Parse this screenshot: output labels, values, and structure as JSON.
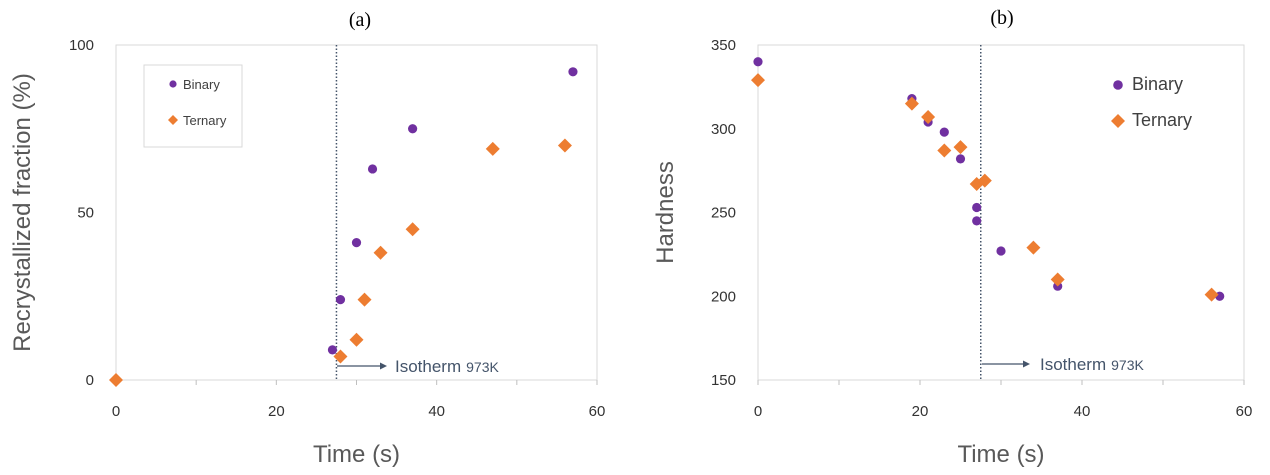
{
  "chart_data": [
    {
      "type": "scatter",
      "panel_label": "(a)",
      "xlabel": "Time (s)",
      "ylabel": "Recrystallized fraction (%)",
      "xlim": [
        0,
        60
      ],
      "ylim": [
        0,
        100
      ],
      "xticks": [
        "0",
        "20",
        "40",
        "60"
      ],
      "yticks": [
        "0",
        "50",
        "100"
      ],
      "grid": false,
      "legend_position": "top-left",
      "vline_x": 27.5,
      "annotation": {
        "text": "Isotherm",
        "subscript": "973K"
      },
      "series": [
        {
          "name": "Binary",
          "marker": "circle",
          "color": "#7030a0",
          "x": [
            27,
            28,
            30,
            32,
            37,
            57
          ],
          "y": [
            9,
            24,
            41,
            63,
            75,
            92
          ]
        },
        {
          "name": "Ternary",
          "marker": "diamond",
          "color": "#ed7d31",
          "x": [
            0,
            28,
            30,
            31,
            33,
            37,
            47,
            56
          ],
          "y": [
            0,
            7,
            12,
            24,
            38,
            45,
            69,
            70
          ]
        }
      ]
    },
    {
      "type": "scatter",
      "panel_label": "(b)",
      "xlabel": "Time (s)",
      "ylabel": "Hardness",
      "xlim": [
        0,
        60
      ],
      "ylim": [
        150,
        350
      ],
      "xticks": [
        "0",
        "20",
        "40",
        "60"
      ],
      "yticks": [
        "150",
        "200",
        "250",
        "300",
        "350"
      ],
      "grid": false,
      "legend_position": "top-right",
      "vline_x": 27.5,
      "annotation": {
        "text": "Isotherm",
        "subscript": "973K"
      },
      "series": [
        {
          "name": "Binary",
          "marker": "circle",
          "color": "#7030a0",
          "x": [
            0,
            19,
            21,
            23,
            25,
            27,
            27,
            30,
            37,
            57
          ],
          "y": [
            340,
            318,
            304,
            298,
            282,
            253,
            245,
            227,
            206,
            200
          ]
        },
        {
          "name": "Ternary",
          "marker": "diamond",
          "color": "#ed7d31",
          "x": [
            0,
            19,
            21,
            23,
            25,
            27,
            28,
            34,
            37,
            56
          ],
          "y": [
            329,
            315,
            307,
            287,
            289,
            267,
            269,
            229,
            210,
            201
          ]
        }
      ]
    }
  ]
}
